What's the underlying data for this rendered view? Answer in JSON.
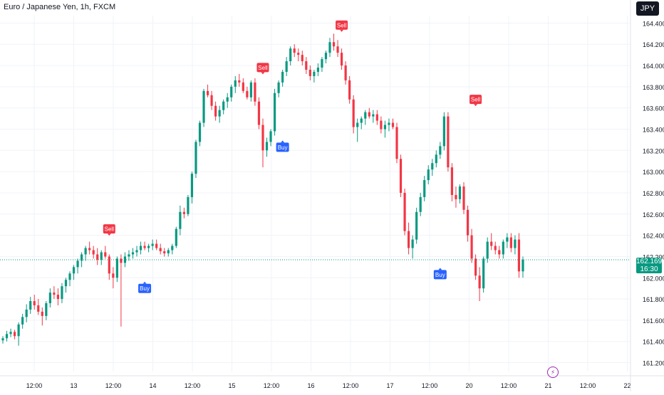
{
  "header": {
    "title": "Euro / Japanese Yen, 1h, FXCM"
  },
  "currency_button": {
    "label": "JPY"
  },
  "last_price": {
    "value": "162.169",
    "countdown": "16:30"
  },
  "colors": {
    "up": "#089981",
    "down": "#f23645",
    "buy": "#2962ff",
    "sell": "#f23645",
    "grid": "#f0f3fa",
    "axis_text": "#131722"
  },
  "icons": {
    "alert": "lightning-icon"
  },
  "chart_data": {
    "type": "candlestick",
    "title": "Euro / Japanese Yen, 1h, FXCM",
    "ylim": [
      161.15,
      164.55
    ],
    "y_ticks": [
      "164.400",
      "164.200",
      "164.000",
      "163.800",
      "163.600",
      "163.400",
      "163.200",
      "163.000",
      "162.800",
      "162.600",
      "162.400",
      "162.200",
      "162.000",
      "161.800",
      "161.600",
      "161.400",
      "161.200"
    ],
    "x_ticks": [
      "12:00",
      "13",
      "12:00",
      "14",
      "12:00",
      "15",
      "12:00",
      "16",
      "12:00",
      "17",
      "12:00",
      "20",
      "12:00",
      "21",
      "12:00",
      "22"
    ],
    "grid": true,
    "current_price_line": 162.169,
    "signals": [
      {
        "label": "Sell",
        "type": "sell",
        "bar": 27,
        "price": 162.39
      },
      {
        "label": "Buy",
        "type": "buy",
        "bar": 36,
        "price": 161.97
      },
      {
        "label": "Sell",
        "type": "sell",
        "bar": 66,
        "price": 163.91
      },
      {
        "label": "Buy",
        "type": "buy",
        "bar": 71,
        "price": 163.3
      },
      {
        "label": "Sell",
        "type": "sell",
        "bar": 86,
        "price": 164.31
      },
      {
        "label": "Buy",
        "type": "buy",
        "bar": 111,
        "price": 162.1
      },
      {
        "label": "Sell",
        "type": "sell",
        "bar": 120,
        "price": 163.61
      }
    ],
    "series": [
      {
        "values": [
          [
            161.41,
            161.45,
            161.38,
            161.43
          ],
          [
            161.43,
            161.5,
            161.4,
            161.47
          ],
          [
            161.47,
            161.52,
            161.44,
            161.49
          ],
          [
            161.49,
            161.51,
            161.42,
            161.45
          ],
          [
            161.45,
            161.58,
            161.36,
            161.56
          ],
          [
            161.56,
            161.66,
            161.52,
            161.63
          ],
          [
            161.63,
            161.75,
            161.58,
            161.7
          ],
          [
            161.7,
            161.82,
            161.66,
            161.78
          ],
          [
            161.78,
            161.84,
            161.7,
            161.74
          ],
          [
            161.74,
            161.8,
            161.65,
            161.68
          ],
          [
            161.68,
            161.72,
            161.55,
            161.64
          ],
          [
            161.64,
            161.78,
            161.6,
            161.76
          ],
          [
            161.76,
            161.9,
            161.72,
            161.86
          ],
          [
            161.86,
            161.92,
            161.8,
            161.84
          ],
          [
            161.84,
            161.9,
            161.74,
            161.8
          ],
          [
            161.8,
            161.95,
            161.76,
            161.92
          ],
          [
            161.92,
            162.0,
            161.86,
            161.98
          ],
          [
            161.98,
            162.06,
            161.92,
            162.04
          ],
          [
            162.04,
            162.12,
            161.98,
            162.1
          ],
          [
            162.1,
            162.18,
            162.04,
            162.16
          ],
          [
            162.16,
            162.24,
            162.1,
            162.22
          ],
          [
            162.22,
            162.3,
            162.16,
            162.28
          ],
          [
            162.28,
            162.34,
            162.22,
            162.26
          ],
          [
            162.26,
            162.3,
            162.18,
            162.22
          ],
          [
            162.22,
            162.28,
            162.12,
            162.17
          ],
          [
            162.17,
            162.26,
            162.12,
            162.24
          ],
          [
            162.24,
            162.3,
            162.18,
            162.2
          ],
          [
            162.2,
            162.22,
            161.98,
            162.04
          ],
          [
            162.04,
            162.1,
            161.9,
            162.0
          ],
          [
            162.0,
            162.2,
            161.96,
            162.18
          ],
          [
            162.18,
            162.22,
            161.54,
            162.14
          ],
          [
            162.14,
            162.24,
            162.1,
            162.2
          ],
          [
            162.2,
            162.26,
            162.16,
            162.22
          ],
          [
            162.22,
            162.28,
            162.18,
            162.24
          ],
          [
            162.24,
            162.3,
            162.2,
            162.26
          ],
          [
            162.26,
            162.34,
            162.22,
            162.3
          ],
          [
            162.3,
            162.34,
            162.26,
            162.28
          ],
          [
            162.28,
            162.32,
            162.24,
            162.3
          ],
          [
            162.3,
            162.36,
            162.26,
            162.32
          ],
          [
            162.32,
            162.36,
            162.26,
            162.28
          ],
          [
            162.28,
            162.32,
            162.22,
            162.25
          ],
          [
            162.25,
            162.28,
            162.2,
            162.23
          ],
          [
            162.23,
            162.28,
            162.2,
            162.26
          ],
          [
            162.26,
            162.32,
            162.22,
            162.3
          ],
          [
            162.3,
            162.48,
            162.28,
            162.46
          ],
          [
            162.46,
            162.68,
            162.4,
            162.62
          ],
          [
            162.62,
            162.66,
            162.56,
            162.6
          ],
          [
            162.6,
            162.78,
            162.58,
            162.76
          ],
          [
            162.76,
            163.0,
            162.7,
            162.98
          ],
          [
            162.98,
            163.3,
            162.94,
            163.28
          ],
          [
            163.28,
            163.48,
            163.24,
            163.46
          ],
          [
            163.46,
            163.78,
            163.42,
            163.76
          ],
          [
            163.76,
            163.82,
            163.7,
            163.72
          ],
          [
            163.72,
            163.76,
            163.58,
            163.62
          ],
          [
            163.62,
            163.66,
            163.48,
            163.52
          ],
          [
            163.52,
            163.62,
            163.46,
            163.58
          ],
          [
            163.58,
            163.68,
            163.54,
            163.66
          ],
          [
            163.66,
            163.74,
            163.6,
            163.7
          ],
          [
            163.7,
            163.82,
            163.66,
            163.8
          ],
          [
            163.8,
            163.9,
            163.74,
            163.86
          ],
          [
            163.86,
            163.92,
            163.8,
            163.84
          ],
          [
            163.84,
            163.88,
            163.74,
            163.76
          ],
          [
            163.76,
            163.8,
            163.68,
            163.7
          ],
          [
            163.7,
            163.86,
            163.66,
            163.84
          ],
          [
            163.84,
            163.88,
            163.62,
            163.66
          ],
          [
            163.66,
            163.7,
            163.4,
            163.44
          ],
          [
            163.44,
            163.5,
            163.04,
            163.2
          ],
          [
            163.2,
            163.32,
            163.14,
            163.28
          ],
          [
            163.28,
            163.4,
            163.24,
            163.38
          ],
          [
            163.38,
            163.78,
            163.34,
            163.74
          ],
          [
            163.74,
            163.86,
            163.7,
            163.84
          ],
          [
            163.84,
            163.96,
            163.8,
            163.94
          ],
          [
            163.94,
            164.08,
            163.9,
            164.04
          ],
          [
            164.04,
            164.18,
            164.0,
            164.16
          ],
          [
            164.16,
            164.2,
            164.08,
            164.12
          ],
          [
            164.12,
            164.16,
            164.04,
            164.1
          ],
          [
            164.1,
            164.14,
            164.0,
            164.04
          ],
          [
            164.04,
            164.08,
            163.92,
            163.96
          ],
          [
            163.96,
            164.0,
            163.86,
            163.9
          ],
          [
            163.9,
            163.96,
            163.84,
            163.94
          ],
          [
            163.94,
            164.02,
            163.9,
            163.98
          ],
          [
            163.98,
            164.08,
            163.94,
            164.06
          ],
          [
            164.06,
            164.14,
            164.02,
            164.12
          ],
          [
            164.12,
            164.26,
            164.08,
            164.22
          ],
          [
            164.22,
            164.3,
            164.14,
            164.18
          ],
          [
            164.18,
            164.24,
            164.08,
            164.12
          ],
          [
            164.12,
            164.16,
            163.96,
            164.0
          ],
          [
            164.0,
            164.04,
            163.82,
            163.86
          ],
          [
            163.86,
            163.9,
            163.64,
            163.68
          ],
          [
            163.68,
            163.72,
            163.36,
            163.42
          ],
          [
            163.42,
            163.5,
            163.28,
            163.46
          ],
          [
            163.46,
            163.52,
            163.4,
            163.5
          ],
          [
            163.5,
            163.58,
            163.44,
            163.56
          ],
          [
            163.56,
            163.6,
            163.5,
            163.52
          ],
          [
            163.52,
            163.58,
            163.46,
            163.54
          ],
          [
            163.54,
            163.58,
            163.44,
            163.48
          ],
          [
            163.48,
            163.52,
            163.36,
            163.4
          ],
          [
            163.4,
            163.48,
            163.32,
            163.44
          ],
          [
            163.44,
            163.5,
            163.38,
            163.46
          ],
          [
            163.46,
            163.5,
            163.4,
            163.42
          ],
          [
            163.42,
            163.46,
            163.08,
            163.12
          ],
          [
            163.12,
            163.16,
            162.76,
            162.8
          ],
          [
            162.8,
            162.84,
            162.4,
            162.44
          ],
          [
            162.44,
            162.52,
            162.22,
            162.28
          ],
          [
            162.28,
            162.4,
            162.18,
            162.36
          ],
          [
            162.36,
            162.66,
            162.32,
            162.62
          ],
          [
            162.62,
            162.8,
            162.58,
            162.76
          ],
          [
            162.76,
            162.96,
            162.72,
            162.92
          ],
          [
            162.92,
            163.06,
            162.88,
            163.02
          ],
          [
            163.02,
            163.12,
            162.96,
            163.08
          ],
          [
            163.08,
            163.2,
            163.04,
            163.16
          ],
          [
            163.16,
            163.28,
            163.12,
            163.24
          ],
          [
            163.24,
            163.56,
            163.2,
            163.52
          ],
          [
            163.52,
            163.56,
            163.0,
            163.04
          ],
          [
            163.04,
            163.08,
            162.72,
            162.78
          ],
          [
            162.78,
            162.86,
            162.66,
            162.74
          ],
          [
            162.74,
            162.88,
            162.7,
            162.86
          ],
          [
            162.86,
            162.9,
            162.6,
            162.64
          ],
          [
            162.64,
            162.68,
            162.34,
            162.4
          ],
          [
            162.4,
            162.46,
            162.14,
            162.18
          ],
          [
            162.18,
            162.22,
            161.98,
            162.02
          ],
          [
            162.02,
            162.1,
            161.78,
            161.9
          ],
          [
            161.9,
            162.2,
            161.86,
            162.18
          ],
          [
            162.18,
            162.38,
            162.14,
            162.34
          ],
          [
            162.34,
            162.42,
            162.26,
            162.3
          ],
          [
            162.3,
            162.34,
            162.22,
            162.26
          ],
          [
            162.26,
            162.3,
            162.18,
            162.22
          ],
          [
            162.22,
            162.36,
            162.18,
            162.34
          ],
          [
            162.34,
            162.42,
            162.28,
            162.38
          ],
          [
            162.38,
            162.42,
            162.24,
            162.28
          ],
          [
            162.28,
            162.4,
            162.22,
            162.36
          ],
          [
            162.36,
            162.42,
            162.0,
            162.06
          ],
          [
            162.06,
            162.2,
            162.0,
            162.17
          ]
        ]
      }
    ]
  }
}
